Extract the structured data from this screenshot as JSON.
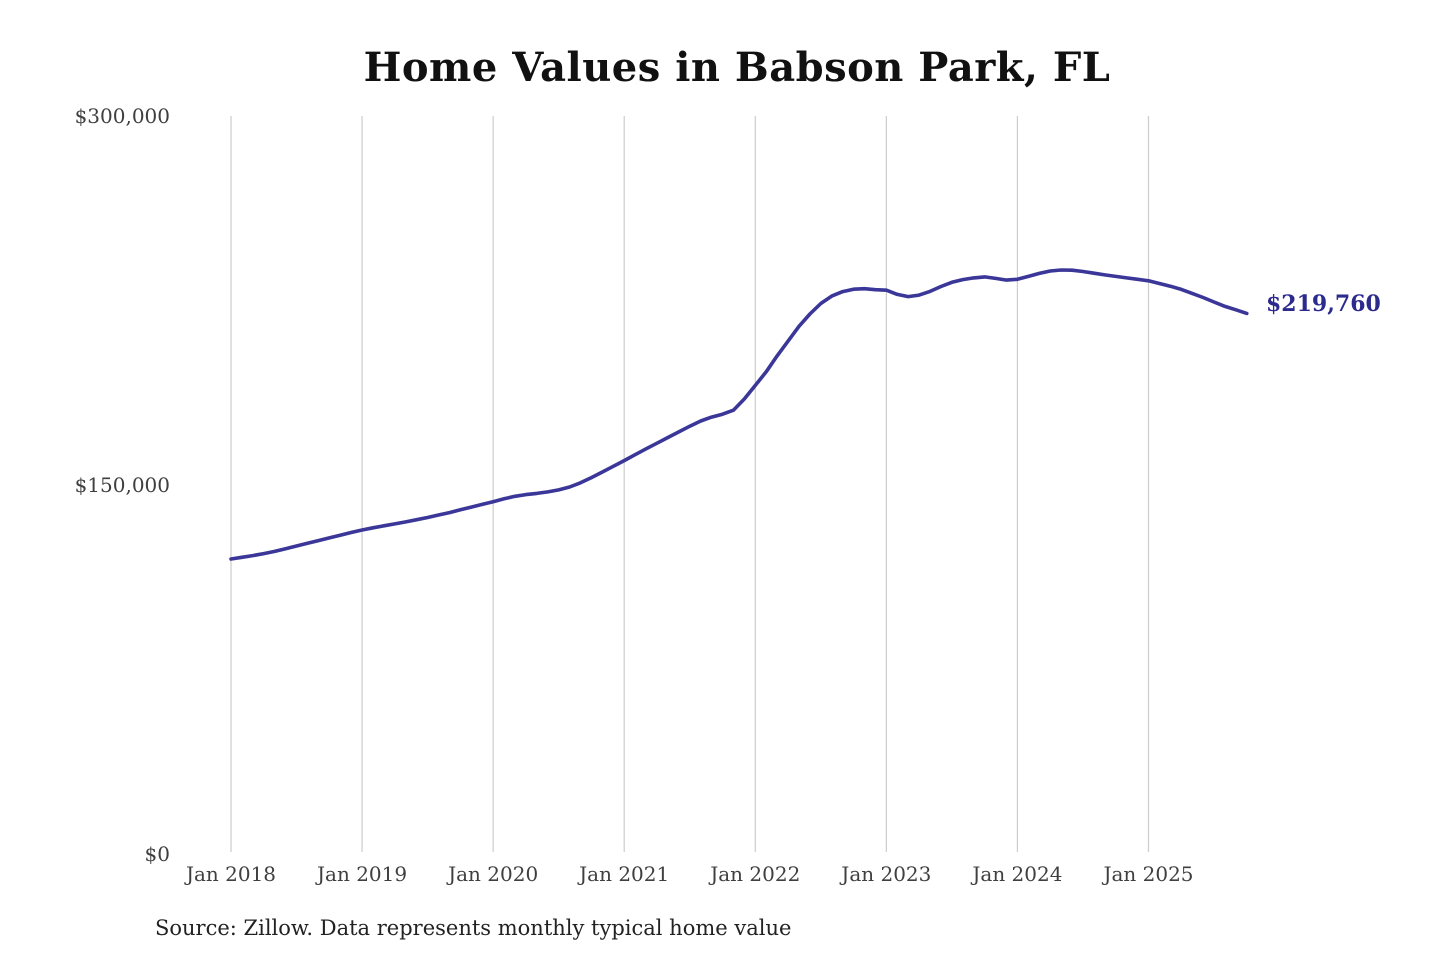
{
  "page": {
    "background": "#ffffff"
  },
  "chart": {
    "title": "Home Values in Babson Park, FL",
    "source_note": "Source: Zillow. Data represents monthly typical home value",
    "end_label": "$219,760"
  },
  "colors": {
    "line": "#3b3799",
    "end_label": "#2d2a8e",
    "grid": "#cccccc",
    "axis_text": "#3f3f3f",
    "title_text": "#111111",
    "source_text": "#222222"
  },
  "chart_data": {
    "type": "line",
    "title": "Home Values in Babson Park, FL",
    "series_name": "Monthly typical home value",
    "legend": "none",
    "grid": "vertical-year-lines-only",
    "ylim": [
      0,
      300000
    ],
    "y_ticks": [
      {
        "label": "$300,000",
        "value": 300000
      },
      {
        "label": "$150,000",
        "value": 150000
      },
      {
        "label": "$0",
        "value": 0
      }
    ],
    "x_tick_labels": [
      "Jan 2018",
      "Jan 2019",
      "Jan 2020",
      "Jan 2021",
      "Jan 2022",
      "Jan 2023",
      "Jan 2024",
      "Jan 2025"
    ],
    "last_value": 219760,
    "last_point_label": "$219,760",
    "x": [
      "2018-01",
      "2018-02",
      "2018-03",
      "2018-04",
      "2018-05",
      "2018-06",
      "2018-07",
      "2018-08",
      "2018-09",
      "2018-10",
      "2018-11",
      "2018-12",
      "2019-01",
      "2019-02",
      "2019-03",
      "2019-04",
      "2019-05",
      "2019-06",
      "2019-07",
      "2019-08",
      "2019-09",
      "2019-10",
      "2019-11",
      "2019-12",
      "2020-01",
      "2020-02",
      "2020-03",
      "2020-04",
      "2020-05",
      "2020-06",
      "2020-07",
      "2020-08",
      "2020-09",
      "2020-10",
      "2020-11",
      "2020-12",
      "2021-01",
      "2021-02",
      "2021-03",
      "2021-04",
      "2021-05",
      "2021-06",
      "2021-07",
      "2021-08",
      "2021-09",
      "2021-10",
      "2021-11",
      "2021-12",
      "2022-01",
      "2022-02",
      "2022-03",
      "2022-04",
      "2022-05",
      "2022-06",
      "2022-07",
      "2022-08",
      "2022-09",
      "2022-10",
      "2022-11",
      "2022-12",
      "2023-01",
      "2023-02",
      "2023-03",
      "2023-04",
      "2023-05",
      "2023-06",
      "2023-07",
      "2023-08",
      "2023-09",
      "2023-10",
      "2023-11",
      "2023-12",
      "2024-01",
      "2024-02",
      "2024-03",
      "2024-04",
      "2024-05",
      "2024-06",
      "2024-07",
      "2024-08",
      "2024-09",
      "2024-10",
      "2024-11",
      "2024-12",
      "2025-01",
      "2025-02",
      "2025-03",
      "2025-04",
      "2025-05",
      "2025-06",
      "2025-07",
      "2025-08",
      "2025-09",
      "2025-10"
    ],
    "values": [
      119900,
      120600,
      121300,
      122100,
      123000,
      124100,
      125200,
      126300,
      127400,
      128500,
      129600,
      130700,
      131700,
      132600,
      133400,
      134200,
      135000,
      135900,
      136800,
      137800,
      138800,
      139900,
      141000,
      142100,
      143200,
      144400,
      145400,
      146100,
      146600,
      147200,
      148000,
      149200,
      150900,
      153000,
      155300,
      157600,
      159900,
      162300,
      164700,
      167000,
      169300,
      171600,
      173900,
      176000,
      177600,
      178800,
      180400,
      185000,
      190500,
      196000,
      202500,
      208500,
      214500,
      219500,
      223800,
      226800,
      228600,
      229600,
      229800,
      229400,
      229200,
      227500,
      226600,
      227200,
      228700,
      230700,
      232400,
      233500,
      234200,
      234600,
      234000,
      233300,
      233600,
      234800,
      236000,
      237000,
      237400,
      237300,
      236800,
      236100,
      235400,
      234800,
      234200,
      233600,
      233000,
      231900,
      230800,
      229500,
      227900,
      226200,
      224400,
      222600,
      221200,
      219760
    ]
  }
}
